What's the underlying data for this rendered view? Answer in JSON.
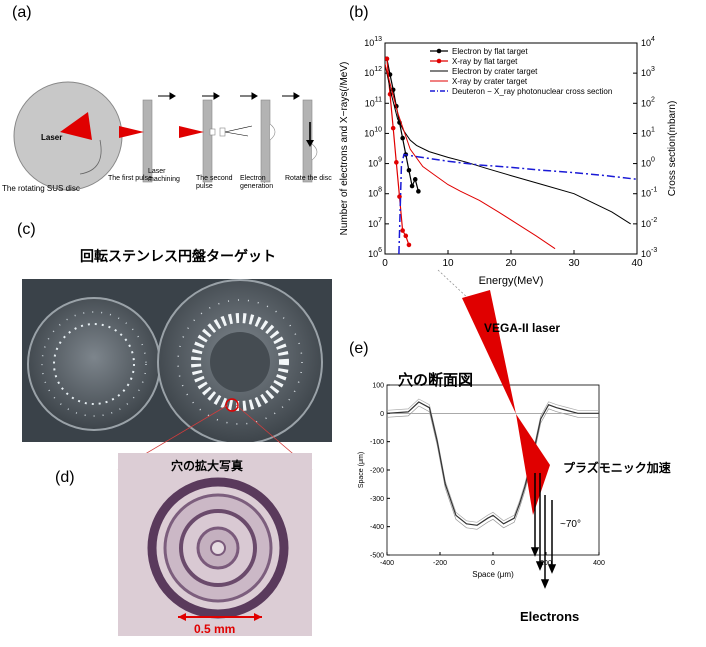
{
  "panels": {
    "a": "(a)",
    "b": "(b)",
    "c": "(c)",
    "d": "(d)",
    "e": "(e)"
  },
  "panel_a": {
    "laser": "Laser",
    "disc": "The rotating SUS disc",
    "step1": "The first pulse",
    "step2": "Laser machining",
    "step3a": "The second",
    "step3b": "pulse",
    "step4a": "Electron",
    "step4b": "generation",
    "step5": "Rotate the disc"
  },
  "panel_c": {
    "title": "回転ステンレス円盤ターゲット"
  },
  "panel_d": {
    "title": "穴の拡大写真",
    "scale": "0.5 mm"
  },
  "panel_e": {
    "title": "穴の断面図",
    "laser": "VEGA-II laser",
    "plasmonic": "プラズモニック加速",
    "angle": "~70°",
    "electrons": "Electrons",
    "xlabel": "Space (μm)",
    "ylabel": "Space (μm)"
  },
  "colors": {
    "laser": "#e00000",
    "flat_electron": "#000000",
    "flat_xray": "#e00000",
    "cross_section": "#1a1ad6"
  },
  "chart_data": [
    {
      "type": "line",
      "xlabel": "Energy(MeV)",
      "ylabel": "Number of electrons and X−rays(/MeV)",
      "y2label": "Cross section(mbarn)",
      "xlim": [
        0,
        40
      ],
      "ylim": [
        1000000.0,
        10000000000000.0
      ],
      "y2lim": [
        0.001,
        10000
      ],
      "yscale": "log",
      "x_ticks": [
        "0",
        "10",
        "20",
        "30",
        "40"
      ],
      "y_ticks": [
        "10^6",
        "10^7",
        "10^8",
        "10^9",
        "10^10",
        "10^11",
        "10^12",
        "10^13"
      ],
      "y2_ticks": [
        "10^-3",
        "10^-2",
        "10^-1",
        "10^0",
        "10^1",
        "10^2",
        "10^3",
        "10^4"
      ],
      "legend_position": "top-right",
      "series": [
        {
          "name": "Electron by flat target",
          "style": "black-dots",
          "x": [
            0.3,
            0.8,
            1.3,
            1.8,
            2.3,
            2.8,
            3.3,
            3.8,
            4.3,
            4.8,
            5.3
          ],
          "y": [
            3000000000000.0,
            900000000000.0,
            280000000000.0,
            80000000000.0,
            23000000000.0,
            7000000000.0,
            2000000000.0,
            600000000.0,
            180000000.0,
            300000000.0,
            120000000.0
          ]
        },
        {
          "name": "X-ray by flat target",
          "style": "red-dots",
          "x": [
            0.3,
            0.8,
            1.3,
            1.8,
            2.3,
            2.8,
            3.3,
            3.8
          ],
          "y": [
            3000000000000.0,
            200000000000.0,
            15000000000.0,
            1100000000.0,
            80000000.0,
            6000000.0,
            4000000.0,
            2000000.0
          ]
        },
        {
          "name": "Electron by crater target",
          "style": "black-line",
          "x": [
            0,
            1,
            2,
            3,
            4,
            5,
            7,
            10,
            13,
            16,
            20,
            25,
            30,
            33,
            36,
            39
          ],
          "y": [
            2000000000000.0,
            200000000000.0,
            30000000000.0,
            12000000000.0,
            6000000000.0,
            4000000000.0,
            2500000000.0,
            1600000000.0,
            1100000000.0,
            700000000.0,
            400000000.0,
            200000000.0,
            100000000.0,
            50000000.0,
            25000000.0,
            10000000.0
          ]
        },
        {
          "name": "X-ray by crater target",
          "style": "red-line",
          "x": [
            0,
            2,
            4,
            6,
            8,
            10,
            12,
            15,
            18,
            21,
            24,
            27
          ],
          "y": [
            2000000000000.0,
            50000000000.0,
            3000000000.0,
            800000000.0,
            400000000.0,
            200000000.0,
            120000000.0,
            60000000.0,
            25000000.0,
            10000000.0,
            4000000.0,
            1500000.0
          ]
        },
        {
          "name": "Deuteron − X_ray photonuclear cross section",
          "style": "blue-dashdot",
          "axis": "right",
          "x": [
            2.2,
            2.6,
            3,
            5,
            10,
            15,
            20,
            25,
            30,
            35,
            40
          ],
          "y": [
            0.001,
            0.8,
            2,
            1.7,
            1.2,
            0.9,
            0.75,
            0.6,
            0.5,
            0.4,
            0.3
          ]
        }
      ]
    },
    {
      "type": "line",
      "xlabel": "Space (μm)",
      "ylabel": "Space (μm)",
      "xlim": [
        -400,
        400
      ],
      "ylim": [
        -500,
        100
      ],
      "x_ticks": [
        "-400",
        "-200",
        "0",
        "200",
        "400"
      ],
      "y_ticks": [
        "100",
        "0",
        "-100",
        "-200",
        "-300",
        "-400",
        "-500"
      ],
      "series": [
        {
          "x": [
            -400,
            -320,
            -280,
            -240,
            -210,
            -180,
            -140,
            -100,
            -60,
            -20,
            0,
            40,
            80,
            100,
            120,
            150,
            180,
            210,
            240,
            280,
            320,
            400
          ],
          "y": [
            0,
            5,
            40,
            20,
            -100,
            -250,
            -360,
            -390,
            -395,
            -370,
            -360,
            -390,
            -370,
            -320,
            -260,
            -150,
            -20,
            30,
            20,
            10,
            0,
            0
          ]
        }
      ]
    }
  ]
}
